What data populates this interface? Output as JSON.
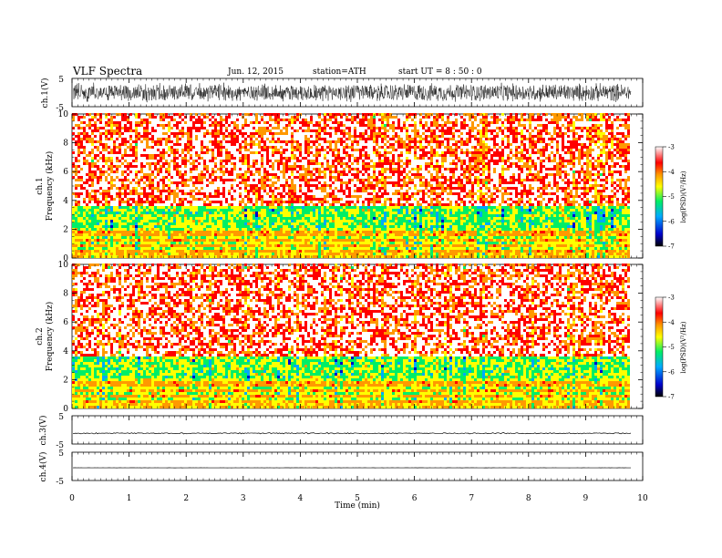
{
  "header": {
    "title": "VLF  Spectra",
    "date": "Jun. 12, 2015",
    "station": "station=ATH",
    "start": "start  UT =   8 : 50 : 0"
  },
  "chart_data": {
    "type": "heatmap",
    "x_axis": {
      "label": "Time  (min)",
      "range": [
        0,
        10
      ],
      "ticks": [
        0,
        1,
        2,
        3,
        4,
        5,
        6,
        7,
        8,
        9,
        10
      ],
      "data_end": 9.8
    },
    "panels": [
      {
        "id": "ch1-waveform",
        "type": "line",
        "ylabel": "ch.1(V)",
        "ylim": [
          -5,
          5
        ],
        "ytick_labels": [
          "5",
          "-5"
        ],
        "description_level": "dense noise ~ ±3 V"
      },
      {
        "id": "ch1-spectrogram",
        "type": "heatmap",
        "ylabel": "ch.1\nFrequency  (kHz)",
        "ylabel_lines": [
          "ch.1",
          "Frequency  (kHz)"
        ],
        "ylim": [
          0,
          10
        ],
        "yticks": [
          0,
          2,
          4,
          6,
          8,
          10
        ],
        "z_label": "log(PSD)(V²/Hz)",
        "z_range": [
          -7,
          -3
        ],
        "z_ticks": [
          -3,
          -4,
          -5,
          -6,
          -7
        ]
      },
      {
        "id": "ch2-spectrogram",
        "type": "heatmap",
        "ylabel": "ch.2\nFrequency  (kHz)",
        "ylabel_lines": [
          "ch.2",
          "Frequency  (kHz)"
        ],
        "ylim": [
          0,
          10
        ],
        "yticks": [
          0,
          2,
          4,
          6,
          8,
          10
        ],
        "z_label": "log(PSD)(V²/Hz)",
        "z_range": [
          -7,
          -3
        ],
        "z_ticks": [
          -3,
          -4,
          -5,
          -6,
          -7
        ]
      },
      {
        "id": "ch3-waveform",
        "type": "line",
        "ylabel": "ch.3(V)",
        "ylim": [
          -5,
          5
        ],
        "ytick_labels": [
          "5",
          "-5"
        ],
        "level": -1.2
      },
      {
        "id": "ch4-waveform",
        "type": "line",
        "ylabel": "ch.4(V)",
        "ylim": [
          -5,
          5
        ],
        "ytick_labels": [
          "5",
          "-5"
        ],
        "level": -0.5
      }
    ],
    "colorscale": [
      "#000000",
      "#0000cc",
      "#00aaff",
      "#00ee66",
      "#ffff00",
      "#ff9900",
      "#ff0000",
      "#ffffff"
    ]
  }
}
